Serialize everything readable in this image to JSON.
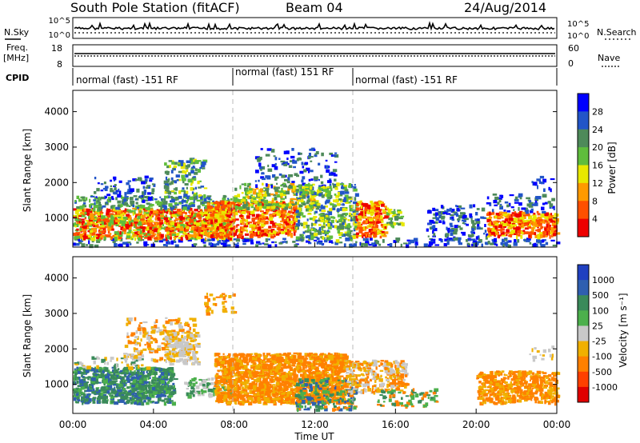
{
  "header": {
    "station": "South Pole Station (fitACF)",
    "beam": "Beam 04",
    "date": "24/Aug/2014"
  },
  "params": {
    "nsky_label": "N.Sky",
    "nsearch_label": "N.Search",
    "noise_ticks_left": [
      "10^5",
      "10^0"
    ],
    "noise_ticks_right": [
      "10^5",
      "10^0"
    ],
    "freq_label": "Freq.",
    "freq_unit": "[MHz]",
    "freq_ticks": [
      "18",
      "8"
    ],
    "nave_label": "Nave",
    "nave_ticks": [
      "60",
      "0"
    ],
    "cpid_label": "CPID",
    "cpid_segments": [
      {
        "label": "normal (fast) -151 RF",
        "start_hour": 0,
        "end_hour": 8
      },
      {
        "label": "normal (fast) 151 RF",
        "start_hour": 8,
        "end_hour": 14
      },
      {
        "label": "normal (fast) -151 RF",
        "start_hour": 14,
        "end_hour": 24
      }
    ]
  },
  "chart_data": [
    {
      "type": "heatmap",
      "name": "power",
      "ylabel": "Slant Range [km]",
      "ylim": [
        180,
        4600
      ],
      "yticks": [
        "1000",
        "2000",
        "3000",
        "4000"
      ],
      "xlim": [
        0,
        24
      ],
      "colorbar_label": "Power [dB]",
      "colorbar_ticks": [
        "4",
        "8",
        "12",
        "16",
        "20",
        "24",
        "28"
      ],
      "colorbar_colors": [
        "#0000ff",
        "#2255c8",
        "#4e8a5a",
        "#5fbd3c",
        "#e8e800",
        "#ff9a00",
        "#ff5000",
        "#ee0000"
      ]
    },
    {
      "type": "heatmap",
      "name": "velocity",
      "ylabel": "Slant Range [km]",
      "ylim": [
        180,
        4600
      ],
      "yticks": [
        "1000",
        "2000",
        "3000",
        "4000"
      ],
      "xlim": [
        0,
        24
      ],
      "xticks": [
        "00:00",
        "04:00",
        "08:00",
        "12:00",
        "16:00",
        "20:00",
        "00:00"
      ],
      "xlabel": "Time UT",
      "colorbar_label": "Velocity [m s⁻¹]",
      "colorbar_ticks": [
        "1000",
        "500",
        "100",
        "25",
        "-25",
        "-100",
        "-500",
        "-1000"
      ],
      "colorbar_colors": [
        "#2040c0",
        "#2f5fb0",
        "#3a8a5a",
        "#4cb04c",
        "#c8c8c8",
        "#f0b000",
        "#ff8000",
        "#ff4000",
        "#e00000"
      ]
    }
  ]
}
